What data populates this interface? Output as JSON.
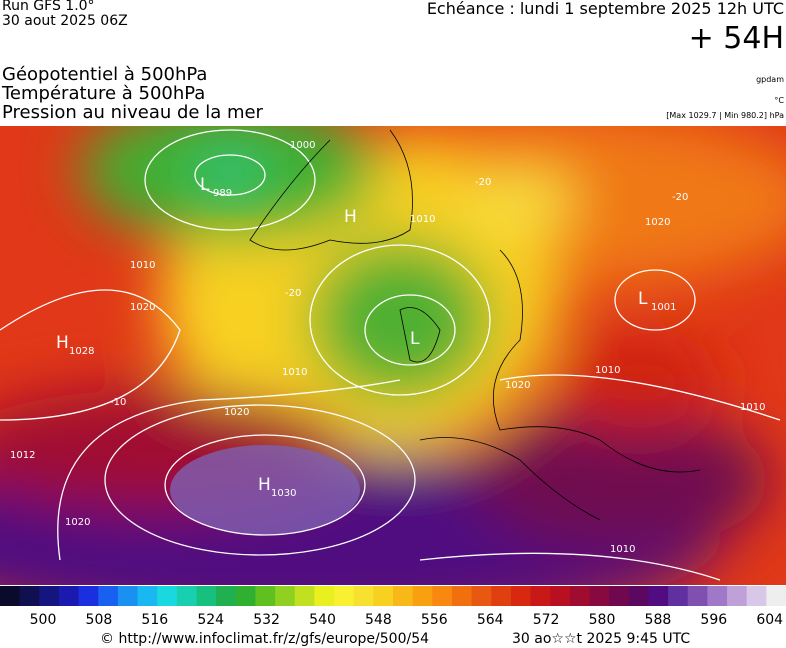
{
  "header": {
    "run": "Run GFS 1.0°",
    "date": "30 aout 2025 06Z",
    "forecast": "Echéance : lundi 1 septembre 2025 12h UTC",
    "lead": "+ 54H",
    "lines": [
      "Géopotentiel à 500hPa",
      "Température à 500hPa",
      "Pression au niveau de la mer"
    ],
    "unit1": "gpdam",
    "unit2": "°C",
    "range": "[Max 1029.7 | Min 980.2] hPa"
  },
  "centers": [
    {
      "letter": "L",
      "value": "989"
    },
    {
      "letter": "H",
      "value": "1028"
    },
    {
      "letter": "H",
      "value": "1030"
    },
    {
      "letter": "L",
      "value": "1001"
    },
    {
      "letter": "H",
      "value": ""
    },
    {
      "letter": "L",
      "value": ""
    }
  ],
  "isobars": [
    "1000",
    "1010",
    "1020",
    "1010",
    "1020",
    "1010",
    "1020",
    "1012",
    "1020",
    "1010",
    "1010",
    "1010",
    "1020",
    "-20",
    "-20",
    "-20",
    "-10"
  ],
  "colorbar": {
    "labels": [
      "500",
      "508",
      "516",
      "524",
      "532",
      "540",
      "548",
      "556",
      "564",
      "572",
      "580",
      "588",
      "596",
      "604"
    ],
    "colors": [
      "#0a0a2a",
      "#101050",
      "#151580",
      "#1a1ab0",
      "#1a30e0",
      "#1a60f0",
      "#1a90f0",
      "#1ab8f0",
      "#1ad8e0",
      "#18d0b0",
      "#18c080",
      "#20b050",
      "#30b030",
      "#60c020",
      "#90d020",
      "#c0e020",
      "#e8f020",
      "#f8f030",
      "#f8e030",
      "#f8d020",
      "#f8b818",
      "#f8a010",
      "#f88810",
      "#f07010",
      "#e85810",
      "#e04010",
      "#d82810",
      "#c81818",
      "#b81020",
      "#a00c30",
      "#880840",
      "#700850",
      "#5a0860",
      "#500c80",
      "#6030a0",
      "#8050b0",
      "#a078c8",
      "#c0a0d8",
      "#d8c8e8",
      "#eee"
    ]
  },
  "footer": {
    "url": "© http://www.infoclimat.fr/z/gfs/europe/500/54",
    "time": "30 ao☆☆t 2025  9:45 UTC"
  }
}
